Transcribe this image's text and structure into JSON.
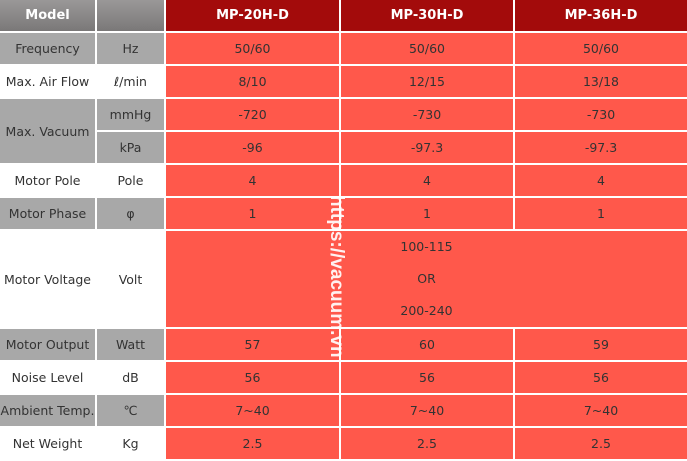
{
  "header": {
    "model": "Model",
    "unit": "",
    "models": [
      "MP-20H-D",
      "MP-30H-D",
      "MP-36H-D"
    ]
  },
  "rows": [
    {
      "label": "Frequency",
      "unit": "Hz",
      "values": [
        "50/60",
        "50/60",
        "50/60"
      ]
    },
    {
      "label": "Max. Air Flow",
      "unit": "ℓ/min",
      "values": [
        "8/10",
        "12/15",
        "13/18"
      ]
    },
    {
      "label": "Max. Vacuum",
      "unit": "mmHg",
      "values": [
        "-720",
        "-730",
        "-730"
      ]
    },
    {
      "label": "",
      "unit": "kPa",
      "values": [
        "-96",
        "-97.3",
        "-97.3"
      ]
    },
    {
      "label": "Motor Pole",
      "unit": "Pole",
      "values": [
        "4",
        "4",
        "4"
      ]
    },
    {
      "label": "Motor Phase",
      "unit": "φ",
      "values": [
        "1",
        "1",
        "1"
      ]
    },
    {
      "label": "Motor Voltage",
      "unit": "Volt",
      "values": [
        "100-115",
        "OR",
        "200-240"
      ]
    },
    {
      "label": "Motor Output",
      "unit": "Watt",
      "values": [
        "57",
        "60",
        "59"
      ]
    },
    {
      "label": "Noise Level",
      "unit": "dB",
      "values": [
        "56",
        "56",
        "56"
      ]
    },
    {
      "label": "Ambient Temp.",
      "unit": "℃",
      "values": [
        "7~40",
        "7~40",
        "7~40"
      ]
    },
    {
      "label": "Net Weight",
      "unit": "Kg",
      "values": [
        "2.5",
        "2.5",
        "2.5"
      ]
    }
  ],
  "watermark": "https://vacuum.vn"
}
